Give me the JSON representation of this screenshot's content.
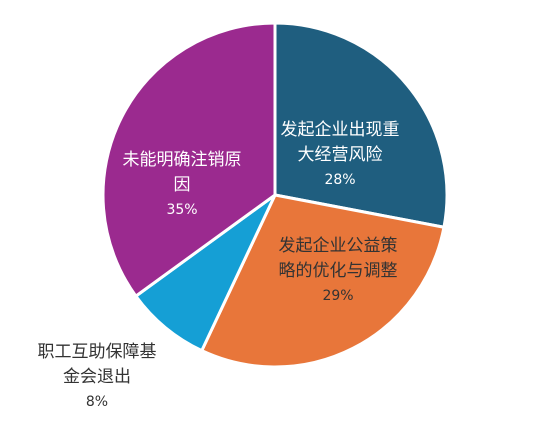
{
  "chart_data": {
    "type": "pie",
    "categories": [
      "发起企业出现重大经营风险",
      "发起企业公益策略的优化与调整",
      "职工互助保障基金会退出",
      "未能明确注销原因"
    ],
    "values": [
      28,
      29,
      8,
      35
    ],
    "value_labels": [
      "28%",
      "29%",
      "8%",
      "35%"
    ],
    "colors": [
      "#1f5e7f",
      "#e8763a",
      "#159fd5",
      "#9b2a8f"
    ]
  }
}
